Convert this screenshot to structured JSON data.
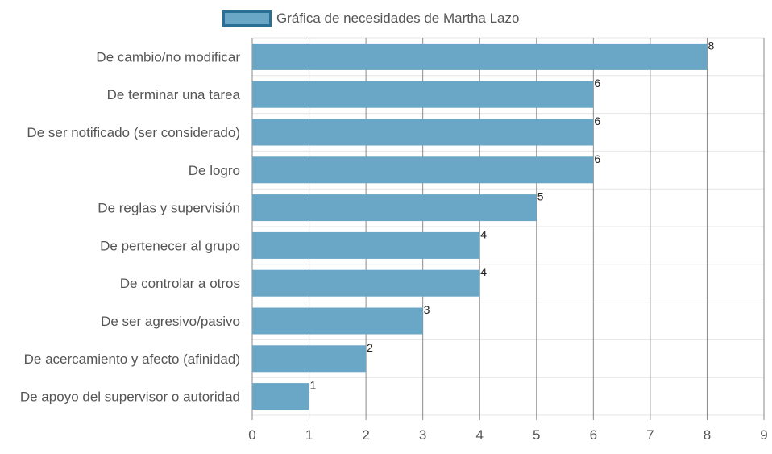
{
  "chart_data": {
    "type": "bar",
    "orientation": "horizontal",
    "categories": [
      "De cambio/no modificar",
      "De terminar una tarea",
      "De ser notificado (ser considerado)",
      "De logro",
      "De reglas y supervisión",
      "De pertenecer al grupo",
      "De controlar a otros",
      "De ser agresivo/pasivo",
      "De acercamiento y afecto (afinidad)",
      "De apoyo del supervisor o autoridad"
    ],
    "series": [
      {
        "name": "Gráfica de necesidades de Martha Lazo",
        "values": [
          8,
          6,
          6,
          6,
          5,
          4,
          4,
          3,
          2,
          1
        ]
      }
    ],
    "xlim": [
      0,
      9
    ],
    "x_ticks": [
      0,
      1,
      2,
      3,
      4,
      5,
      6,
      7,
      8,
      9
    ],
    "grid": true,
    "legend_position": "top",
    "colors": {
      "bar_fill": "#6aa6c5",
      "legend_border": "#2a6f94",
      "grid_major": "#8a8a8a",
      "grid_minor": "#e5e5e5"
    }
  }
}
